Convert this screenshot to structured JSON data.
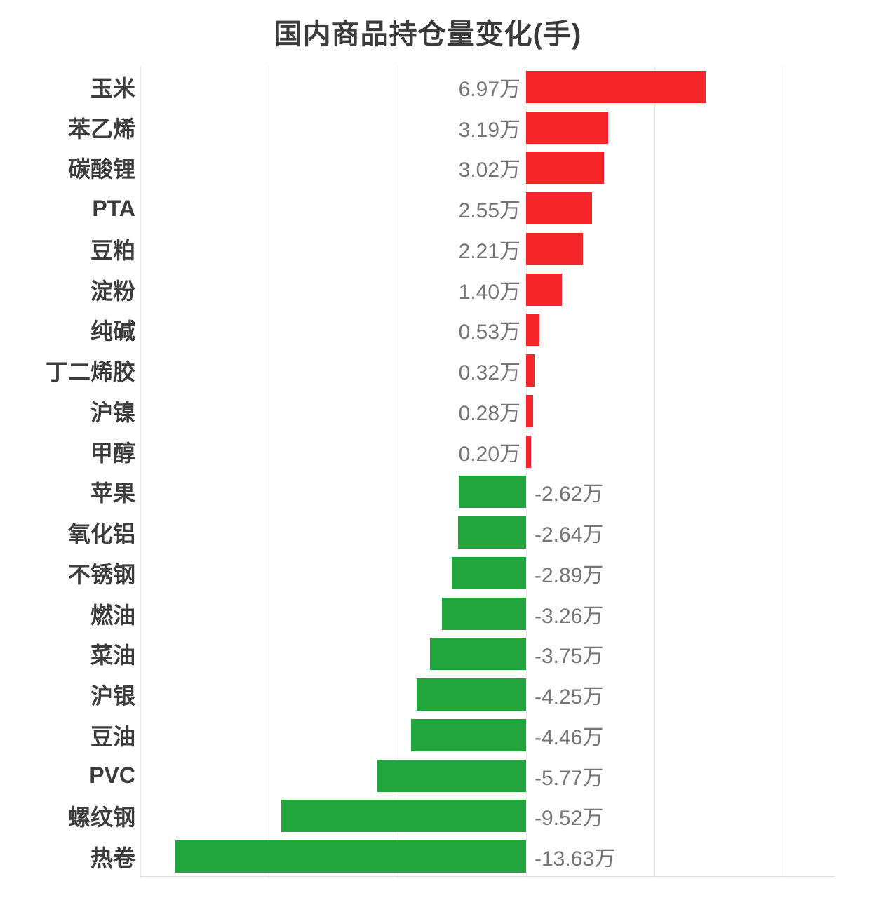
{
  "title": "国内商品持仓量变化(手)",
  "colors": {
    "positive_bar": "#f5262a",
    "negative_bar": "#22a53c",
    "category_label": "#3c3c3c",
    "value_label": "#757575",
    "gridline": "#e8e8e8",
    "axis_line": "#dcdcdc",
    "title": "#3b3b3b",
    "background": "#ffffff"
  },
  "chart_data": {
    "type": "bar",
    "orientation": "horizontal",
    "title": "国内商品持仓量变化(手)",
    "unit": "万手",
    "grid": true,
    "legend": false,
    "xlim": [
      -15,
      12
    ],
    "gridline_step": 5,
    "categories": [
      "玉米",
      "苯乙烯",
      "碳酸锂",
      "PTA",
      "豆粕",
      "淀粉",
      "纯碱",
      "丁二烯胶",
      "沪镍",
      "甲醇",
      "苹果",
      "氧化铝",
      "不锈钢",
      "燃油",
      "菜油",
      "沪银",
      "豆油",
      "PVC",
      "螺纹钢",
      "热卷"
    ],
    "values": [
      6.97,
      3.19,
      3.02,
      2.55,
      2.21,
      1.4,
      0.53,
      0.32,
      0.28,
      0.2,
      -2.62,
      -2.64,
      -2.89,
      -3.26,
      -3.75,
      -4.25,
      -4.46,
      -5.77,
      -9.52,
      -13.63
    ],
    "value_labels": [
      "6.97万",
      "3.19万",
      "3.02万",
      "2.55万",
      "2.21万",
      "1.40万",
      "0.53万",
      "0.32万",
      "0.28万",
      "0.20万",
      "-2.62万",
      "-2.64万",
      "-2.89万",
      "-3.26万",
      "-3.75万",
      "-4.25万",
      "-4.46万",
      "-5.77万",
      "-9.52万",
      "-13.63万"
    ]
  }
}
